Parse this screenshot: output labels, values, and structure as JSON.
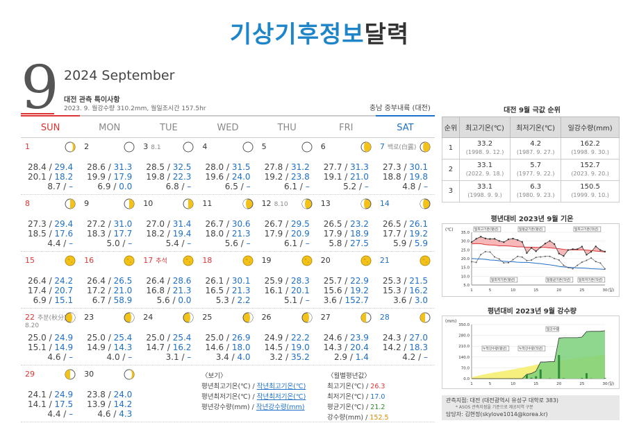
{
  "header": {
    "title_part1": "기상기후정보",
    "title_part2": "달력"
  },
  "month": {
    "number": "9",
    "year_month": "2024 September"
  },
  "station": {
    "title": "대전 관측 특이사항",
    "subtitle": "2023. 9. 월강수량 310.2mm, 월일조시간 157.5hr",
    "region": "충남 중부내륙 (대전)"
  },
  "weekdays": [
    "SUN",
    "MON",
    "TUE",
    "WED",
    "THU",
    "FRI",
    "SAT"
  ],
  "weeks": [
    [
      {
        "d": "1",
        "color": "red",
        "note": "",
        "note2": "",
        "moon": "crescent-right",
        "r1": "28.4 / ",
        "v1": "29.4",
        "r2": "20.1 / ",
        "v2": "18.2",
        "r3": "8.7 / ",
        "v3": "–"
      },
      {
        "d": "2",
        "color": "",
        "note": "",
        "note2": "",
        "moon": "new",
        "r1": "28.6 / ",
        "v1": "31.3",
        "r2": "19.9 / ",
        "v2": "17.9",
        "r3": "6.9 / ",
        "v3": "0.0"
      },
      {
        "d": "3",
        "color": "",
        "note": "8.1",
        "note2": "",
        "moon": "new",
        "r1": "28.5 / ",
        "v1": "32.5",
        "r2": "19.8 / ",
        "v2": "22.3",
        "r3": "6.8 / ",
        "v3": "–"
      },
      {
        "d": "4",
        "color": "",
        "note": "",
        "note2": "",
        "moon": "new",
        "r1": "28.0 / ",
        "v1": "31.5",
        "r2": "19.6 / ",
        "v2": "24.0",
        "r3": "6.5 / ",
        "v3": "–"
      },
      {
        "d": "5",
        "color": "",
        "note": "",
        "note2": "",
        "moon": "new",
        "r1": "27.8 / ",
        "v1": "31.2",
        "r2": "19.2 / ",
        "v2": "23.8",
        "r3": "6.1 / ",
        "v3": "–"
      },
      {
        "d": "6",
        "color": "",
        "note": "",
        "note2": "",
        "moon": "crescent-left",
        "r1": "27.7 / ",
        "v1": "31.3",
        "r2": "19.1 / ",
        "v2": "21.0",
        "r3": "5.2 / ",
        "v3": "–"
      },
      {
        "d": "7",
        "color": "blue",
        "note": "백로(白露)",
        "note2": "",
        "moon": "crescent-left",
        "r1": "27.3 / ",
        "v1": "30.1",
        "r2": "18.8 / ",
        "v2": "19.8",
        "r3": "4.8 / ",
        "v3": "–"
      }
    ],
    [
      {
        "d": "8",
        "color": "red",
        "note": "",
        "note2": "",
        "moon": "half-left",
        "r1": "27.3 / ",
        "v1": "29.4",
        "r2": "18.5 / ",
        "v2": "17.6",
        "r3": "4.4 / ",
        "v3": "–"
      },
      {
        "d": "9",
        "color": "",
        "note": "",
        "note2": "",
        "moon": "half-left",
        "r1": "27.2 / ",
        "v1": "31.0",
        "r2": "18.3 / ",
        "v2": "17.7",
        "r3": "5.0 / ",
        "v3": "–"
      },
      {
        "d": "10",
        "color": "",
        "note": "",
        "note2": "",
        "moon": "half-left",
        "r1": "27.0 / ",
        "v1": "31.4",
        "r2": "18.2 / ",
        "v2": "19.4",
        "r3": "5.4 / ",
        "v3": "–"
      },
      {
        "d": "11",
        "color": "",
        "note": "",
        "note2": "",
        "moon": "gibbous",
        "r1": "26.7 / ",
        "v1": "30.6",
        "r2": "18.0 / ",
        "v2": "21.3",
        "r3": "5.6 / ",
        "v3": "–"
      },
      {
        "d": "12",
        "color": "",
        "note": "8.10",
        "note2": "",
        "moon": "gibbous",
        "r1": "26.7 / ",
        "v1": "29.5",
        "r2": "17.9 / ",
        "v2": "20.9",
        "r3": "6.1 / ",
        "v3": "–"
      },
      {
        "d": "13",
        "color": "",
        "note": "",
        "note2": "",
        "moon": "gibbous",
        "r1": "26.5 / ",
        "v1": "23.2",
        "r2": "17.9 / ",
        "v2": "18.9",
        "r3": "5.8 / ",
        "v3": "27.5"
      },
      {
        "d": "14",
        "color": "blue",
        "note": "",
        "note2": "",
        "moon": "gibbous",
        "r1": "26.5 / ",
        "v1": "26.1",
        "r2": "17.7 / ",
        "v2": "19.2",
        "r3": "5.9 / ",
        "v3": "5.9"
      }
    ],
    [
      {
        "d": "15",
        "color": "red",
        "note": "",
        "note2": "",
        "moon": "full",
        "r1": "26.4 / ",
        "v1": "24.2",
        "r2": "17.4 / ",
        "v2": "20.7",
        "r3": "6.9 / ",
        "v3": "15.1"
      },
      {
        "d": "16",
        "color": "red",
        "note": "",
        "note2": "",
        "moon": "full",
        "r1": "26.4 / ",
        "v1": "26.5",
        "r2": "17.2 / ",
        "v2": "21.0",
        "r3": "6.7 / ",
        "v3": "58.9"
      },
      {
        "d": "17",
        "color": "red",
        "note": "추석",
        "note2": "",
        "moon": "full",
        "r1": "26.4 / ",
        "v1": "28.6",
        "r2": "16.8 / ",
        "v2": "21.3",
        "r3": "5.6 / ",
        "v3": "0.0"
      },
      {
        "d": "18",
        "color": "red",
        "note": "",
        "note2": "",
        "moon": "full",
        "r1": "26.1 / ",
        "v1": "30.1",
        "r2": "16.5 / ",
        "v2": "21.3",
        "r3": "5.3 / ",
        "v3": "2.2"
      },
      {
        "d": "19",
        "color": "",
        "note": "",
        "note2": "",
        "moon": "full",
        "r1": "25.9 / ",
        "v1": "28.3",
        "r2": "16.1 / ",
        "v2": "20.1",
        "r3": "5.1 / ",
        "v3": "–"
      },
      {
        "d": "20",
        "color": "",
        "note": "",
        "note2": "",
        "moon": "full",
        "r1": "25.7 / ",
        "v1": "22.9",
        "r2": "15.6 / ",
        "v2": "19.2",
        "r3": "3.6 / ",
        "v3": "152.7"
      },
      {
        "d": "21",
        "color": "blue",
        "note": "",
        "note2": "",
        "moon": "full",
        "r1": "25.3 / ",
        "v1": "21.5",
        "r2": "15.3 / ",
        "v2": "16.2",
        "r3": "3.6 / ",
        "v3": "3.0"
      }
    ],
    [
      {
        "d": "22",
        "color": "red",
        "note": "추분(秋分)",
        "note2": "8.20",
        "moon": "gibbous-wane",
        "r1": "25.0 / ",
        "v1": "24.9",
        "r2": "15.1 / ",
        "v2": "14.9",
        "r3": "4.6 / ",
        "v3": "–"
      },
      {
        "d": "23",
        "color": "",
        "note": "",
        "note2": "",
        "moon": "gibbous-wane",
        "r1": "25.0 / ",
        "v1": "25.4",
        "r2": "14.9 / ",
        "v2": "14.3",
        "r3": "4.0 / ",
        "v3": "–"
      },
      {
        "d": "24",
        "color": "",
        "note": "",
        "note2": "",
        "moon": "gibbous-wane",
        "r1": "25.0 / ",
        "v1": "25.4",
        "r2": "14.7 / ",
        "v2": "16.2",
        "r3": "3.1 / ",
        "v3": "–"
      },
      {
        "d": "25",
        "color": "",
        "note": "",
        "note2": "",
        "moon": "gibbous-wane",
        "r1": "25.0 / ",
        "v1": "26.9",
        "r2": "14.6 / ",
        "v2": "18.0",
        "r3": "3.4 / ",
        "v3": "4.0"
      },
      {
        "d": "26",
        "color": "",
        "note": "",
        "note2": "",
        "moon": "gibbous-wane",
        "r1": "24.9 / ",
        "v1": "22.2",
        "r2": "14.5 / ",
        "v2": "19.0",
        "r3": "3.2 / ",
        "v3": "35.2"
      },
      {
        "d": "27",
        "color": "",
        "note": "",
        "note2": "",
        "moon": "half-right",
        "r1": "24.6 / ",
        "v1": "23.9",
        "r2": "14.3 / ",
        "v2": "20.4",
        "r3": "2.9 / ",
        "v3": "1.4"
      },
      {
        "d": "28",
        "color": "blue",
        "note": "",
        "note2": "",
        "moon": "half-right",
        "r1": "24.3 / ",
        "v1": "27.0",
        "r2": "14.2 / ",
        "v2": "18.3",
        "r3": "4.2 / ",
        "v3": "–"
      }
    ],
    [
      {
        "d": "29",
        "color": "red",
        "note": "",
        "note2": "",
        "moon": "half-right",
        "r1": "24.1 / ",
        "v1": "24.9",
        "r2": "14.1 / ",
        "v2": "17.5",
        "r3": "4.4 / ",
        "v3": "–"
      },
      {
        "d": "30",
        "color": "",
        "note": "",
        "note2": "",
        "moon": "crescent-right",
        "r1": "23.8 / ",
        "v1": "24.0",
        "r2": "13.9 / ",
        "v2": "14.2",
        "r3": "4.6 / ",
        "v3": "4.3"
      }
    ]
  ],
  "legend": {
    "title": "〈보기〉",
    "l1a": "평년최고기온(℃) / ",
    "l1b": "작년최고기온(℃)",
    "l2a": "평년최저기온(℃) / ",
    "l2b": "작년최저기온(℃)",
    "l3a": "평년강수량(mm) / ",
    "l3b": "작년강수량(mm)"
  },
  "monthly_normal": {
    "title": "〈월별평년값〉",
    "max_label": "최고기온(℃) / ",
    "max_val": "26.3",
    "min_label": "최저기온(℃) / ",
    "min_val": "17.0",
    "avg_label": "평균기온(℃) / ",
    "avg_val": "21.2",
    "rain_label": "강수량(mm) / ",
    "rain_val": "152.5"
  },
  "ranking": {
    "title": "대전 9월 극값 순위",
    "headers": [
      "순위",
      "최고기온(℃)",
      "최저기온(℃)",
      "일강수량(mm)"
    ],
    "rows": [
      {
        "rank": "1",
        "max": "33.2",
        "max_d": "(1998. 9. 12.)",
        "min": "4.2",
        "min_d": "(1987. 9. 27.)",
        "rain": "162.2",
        "rain_d": "(1998. 9. 30.)"
      },
      {
        "rank": "2",
        "max": "33.1",
        "max_d": "(2022. 9. 18.)",
        "min": "5.7",
        "min_d": "(1977. 9. 22.)",
        "rain": "152.7",
        "rain_d": "(2023. 9. 20.)"
      },
      {
        "rank": "3",
        "max": "33.1",
        "max_d": "(1998. 9. 9.)",
        "min": "6.3",
        "min_d": "(1980. 9. 23.)",
        "rain": "150.5",
        "rain_d": "(1999. 9. 10.)"
      }
    ]
  },
  "temp_chart": {
    "title": "평년대비 2023년 9월 기온",
    "unit": "(℃)",
    "yticks": [
      "35.0",
      "30.0",
      "25.0",
      "20.0",
      "15.0",
      "10.0",
      "5.0"
    ],
    "xticks": [
      "1",
      "5",
      "10",
      "15",
      "20",
      "25",
      "30"
    ],
    "xunit": "(일)",
    "labels": [
      "일최고기온(평년)",
      "일평균기온(평년)",
      "일최저기온(평년)",
      "일평균기온(작년)",
      "일최고기온(작년)",
      "일최저기온(작년)"
    ]
  },
  "rain_chart": {
    "title": "평년대비 2023년 9월 강수량",
    "unit": "(mm)",
    "yticks": [
      "350.0",
      "280.0",
      "210.0",
      "140.0",
      "70.0",
      "0.0"
    ],
    "xticks": [
      "1",
      "5",
      "10",
      "15",
      "20",
      "25",
      "30"
    ],
    "xunit": "(일)",
    "labels": [
      "누적강수량(평년)",
      "누적강수량(작년)",
      "일강수량"
    ]
  },
  "chart_data": [
    {
      "type": "line",
      "title": "평년대비 2023년 9월 기온",
      "x": [
        1,
        2,
        3,
        4,
        5,
        6,
        7,
        8,
        9,
        10,
        11,
        12,
        13,
        14,
        15,
        16,
        17,
        18,
        19,
        20,
        21,
        22,
        23,
        24,
        25,
        26,
        27,
        28,
        29,
        30
      ],
      "ylim": [
        5,
        35
      ],
      "series": [
        {
          "name": "일최고기온(평년)",
          "values": [
            28.4,
            28.6,
            28.5,
            28.0,
            27.8,
            27.7,
            27.3,
            27.3,
            27.2,
            27.0,
            26.7,
            26.7,
            26.5,
            26.5,
            26.4,
            26.4,
            26.4,
            26.1,
            25.9,
            25.7,
            25.3,
            25.0,
            25.0,
            25.0,
            25.0,
            24.9,
            24.6,
            24.3,
            24.1,
            23.8
          ]
        },
        {
          "name": "일최저기온(평년)",
          "values": [
            20.1,
            19.9,
            19.8,
            19.6,
            19.2,
            19.1,
            18.8,
            18.5,
            18.3,
            18.2,
            18.0,
            17.9,
            17.9,
            17.7,
            17.4,
            17.2,
            16.8,
            16.5,
            16.1,
            15.6,
            15.3,
            15.1,
            14.9,
            14.7,
            14.6,
            14.5,
            14.3,
            14.2,
            14.1,
            13.9
          ]
        },
        {
          "name": "일최고기온(작년)",
          "values": [
            29.4,
            31.3,
            32.5,
            31.5,
            31.2,
            31.3,
            30.1,
            29.4,
            31.0,
            31.4,
            30.6,
            29.5,
            23.2,
            26.1,
            24.2,
            26.5,
            28.6,
            30.1,
            28.3,
            22.9,
            21.5,
            24.9,
            25.4,
            25.4,
            26.9,
            22.2,
            23.9,
            27.0,
            24.9,
            24.0
          ]
        },
        {
          "name": "일최저기온(작년)",
          "values": [
            18.2,
            17.9,
            22.3,
            24.0,
            23.8,
            21.0,
            19.8,
            17.6,
            17.7,
            19.4,
            21.3,
            20.9,
            18.9,
            19.2,
            20.7,
            21.0,
            21.3,
            21.3,
            20.1,
            19.2,
            16.2,
            14.9,
            14.3,
            16.2,
            18.0,
            19.0,
            20.4,
            18.3,
            17.5,
            14.2
          ]
        }
      ]
    },
    {
      "type": "area",
      "title": "평년대비 2023년 9월 강수량",
      "x": [
        1,
        2,
        3,
        4,
        5,
        6,
        7,
        8,
        9,
        10,
        11,
        12,
        13,
        14,
        15,
        16,
        17,
        18,
        19,
        20,
        21,
        22,
        23,
        24,
        25,
        26,
        27,
        28,
        29,
        30
      ],
      "ylim": [
        0,
        350
      ],
      "series": [
        {
          "name": "일강수량",
          "values": [
            0,
            0,
            0,
            0,
            0,
            0,
            0,
            0,
            0,
            0,
            0,
            0,
            27.5,
            5.9,
            15.1,
            58.9,
            0,
            2.2,
            0,
            152.7,
            3.0,
            0,
            0,
            0,
            4.0,
            35.2,
            1.4,
            0,
            0,
            4.3
          ]
        },
        {
          "name": "누적강수량(평년)",
          "values": [
            8.7,
            15.6,
            22.4,
            28.9,
            35.0,
            40.2,
            45.0,
            49.4,
            54.4,
            59.8,
            65.4,
            71.5,
            77.3,
            83.2,
            90.1,
            96.8,
            102.4,
            107.7,
            112.8,
            116.4,
            120.0,
            124.6,
            128.6,
            131.7,
            135.1,
            138.3,
            141.2,
            145.4,
            149.8,
            154.4
          ]
        }
      ]
    }
  ],
  "footer": {
    "line1": "관측지점: 대전 (대전광역시 유성구 대학로 383)",
    "line2": "* ASOS 관측지점을 기준으로 제공지역 구분",
    "line3": "담당자: 김현정(skylove1014@korea.kr)"
  }
}
